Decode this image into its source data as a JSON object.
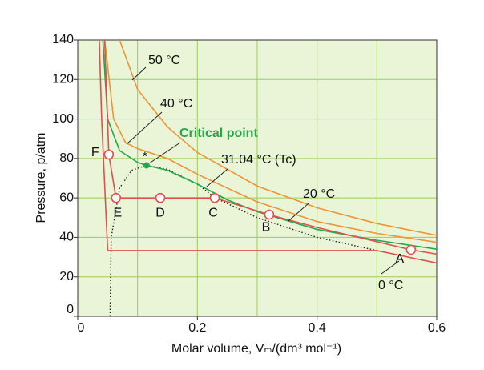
{
  "chart_data": {
    "type": "line",
    "xlabel": "Molar volume, Vₘ/(dm³ mol⁻¹)",
    "ylabel": "Pressure, p/atm",
    "xlim": [
      0,
      0.6
    ],
    "ylim": [
      0,
      140
    ],
    "xticks": [
      0,
      0.2,
      0.4,
      0.6
    ],
    "xminor": [
      0.1,
      0.3,
      0.5
    ],
    "yticks": [
      0,
      20,
      40,
      60,
      80,
      100,
      120,
      140
    ],
    "grid": true,
    "series": [
      {
        "name": "50 °C",
        "color": "#ec9535",
        "x": [
          0.07,
          0.1,
          0.15,
          0.2,
          0.3,
          0.4,
          0.5,
          0.6
        ],
        "values": [
          140,
          115,
          96,
          83,
          66,
          55,
          47,
          41
        ]
      },
      {
        "name": "40 °C",
        "color": "#ec9535",
        "x": [
          0.045,
          0.06,
          0.08,
          0.1,
          0.15,
          0.2,
          0.3,
          0.4,
          0.5,
          0.6
        ],
        "values": [
          140,
          100,
          88,
          85,
          80,
          72,
          58,
          48,
          42,
          37.5
        ]
      },
      {
        "name": "31.04 °C (Tc)",
        "color": "#25a84c",
        "x": [
          0.042,
          0.05,
          0.07,
          0.1,
          0.115,
          0.15,
          0.2,
          0.25,
          0.3,
          0.4,
          0.5,
          0.6
        ],
        "values": [
          140,
          100,
          84,
          78,
          76.5,
          74,
          67,
          59,
          53,
          44,
          38.5,
          34
        ]
      },
      {
        "name": "20 °C",
        "color": "#e0504f",
        "x": [
          0.045,
          0.052,
          0.064,
          0.138,
          0.229,
          0.32,
          0.4,
          0.557,
          0.6
        ],
        "values": [
          140,
          82,
          60,
          60,
          60,
          51.5,
          45,
          33.7,
          31.5
        ]
      },
      {
        "name": "0 °C",
        "color": "#e0504f",
        "x": [
          0.036,
          0.04,
          0.046,
          0.05,
          0.5,
          0.6
        ],
        "values": [
          140,
          100,
          60,
          33.3,
          33.3,
          27
        ]
      }
    ],
    "boundary": {
      "color": "#222222",
      "x": [
        0.054,
        0.056,
        0.07,
        0.09,
        0.115,
        0.15,
        0.2,
        0.23,
        0.3,
        0.4,
        0.5
      ],
      "values": [
        0,
        40,
        65,
        74,
        76.5,
        74.5,
        67,
        60,
        50,
        40,
        33.3
      ]
    },
    "points": [
      {
        "label": "A",
        "x": 0.557,
        "y": 33.7
      },
      {
        "label": "B",
        "x": 0.32,
        "y": 51.5
      },
      {
        "label": "C",
        "x": 0.229,
        "y": 60
      },
      {
        "label": "D",
        "x": 0.138,
        "y": 60
      },
      {
        "label": "E",
        "x": 0.064,
        "y": 60
      },
      {
        "label": "F",
        "x": 0.052,
        "y": 82
      }
    ],
    "critical_point": {
      "label": "Critical point",
      "marker": "*",
      "x": 0.115,
      "y": 76.5,
      "color": "#25a84c"
    }
  }
}
